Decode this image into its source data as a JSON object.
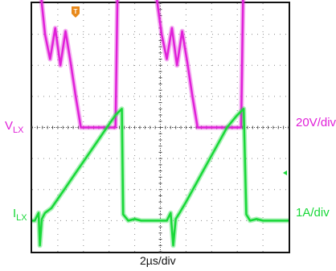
{
  "chart_data": {
    "type": "line",
    "x_unit": "µs",
    "xlim": [
      0,
      20
    ],
    "time_scale_label": "2µs/div",
    "series": [
      {
        "name": "VLX",
        "label_main": "V",
        "label_sub": "LX",
        "scale_label": "20V/div",
        "color": "#e020d8",
        "x": [
          0,
          0.05,
          0.7,
          1.0,
          1.4,
          1.8,
          2.2,
          2.6,
          3.0,
          3.4,
          3.8,
          4.2,
          4.6,
          5.0,
          5.5,
          6.0,
          6.5,
          6.7,
          6.9,
          7.1,
          7.3,
          9.7,
          10.1,
          10.5,
          10.9,
          11.3,
          11.7,
          12.1,
          12.5,
          12.9,
          13.3,
          13.7,
          14.1,
          14.6,
          15.1,
          15.6,
          16.3,
          16.5,
          16.7,
          16.9,
          17.1,
          20.0
        ],
        "y": [
          4.2,
          4.2,
          4.2,
          3.0,
          2.2,
          3.2,
          2.0,
          3.1,
          2.1,
          1.0,
          0.0,
          0.0,
          0.0,
          0.0,
          0.0,
          0.0,
          0.0,
          5.6,
          4.3,
          4.2,
          4.2,
          4.2,
          3.0,
          2.2,
          3.2,
          2.0,
          3.1,
          2.1,
          1.0,
          0.0,
          0.0,
          0.0,
          0.0,
          0.0,
          0.0,
          0.0,
          0.0,
          5.6,
          4.3,
          4.2,
          4.2,
          4.2
        ]
      },
      {
        "name": "ILX",
        "label_main": "I",
        "label_sub": "LX",
        "scale_label": "1A/div",
        "color": "#18d838",
        "x": [
          0,
          0.2,
          0.5,
          0.6,
          0.75,
          1.0,
          1.5,
          2.5,
          3.5,
          4.5,
          5.5,
          6.5,
          7.0,
          7.1,
          7.5,
          8.0,
          8.5,
          9.0,
          9.5,
          10.5,
          10.8,
          11.0,
          11.2,
          11.5,
          12.0,
          12.8,
          13.6,
          14.4,
          15.2,
          16.0,
          16.5,
          16.7,
          17.0,
          17.5,
          18.0,
          19.0,
          20.0
        ],
        "y": [
          0.0,
          0.0,
          0.25,
          -0.8,
          0.05,
          0.25,
          0.4,
          1.0,
          1.6,
          2.2,
          2.8,
          3.4,
          3.6,
          0.2,
          0.0,
          0.05,
          0.0,
          0.0,
          0.0,
          0.0,
          0.25,
          -0.8,
          0.05,
          0.25,
          0.6,
          1.2,
          1.8,
          2.4,
          3.0,
          3.4,
          3.6,
          0.2,
          0.0,
          0.05,
          0.0,
          0.0,
          0.0
        ]
      }
    ],
    "trigger_marker": "T",
    "trigger_color": "#e8891b",
    "grid": true,
    "graticule": {
      "x_divisions": 10,
      "y_divisions": 8
    }
  }
}
